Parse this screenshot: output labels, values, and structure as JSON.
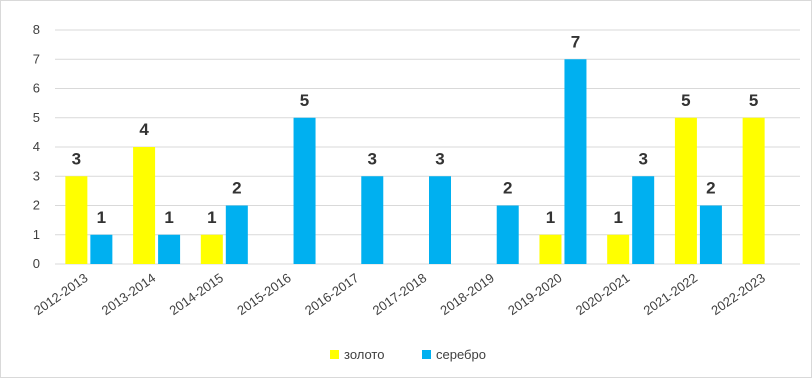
{
  "chart_data": {
    "type": "bar",
    "categories": [
      "2012-2013",
      "2013-2014",
      "2014-2015",
      "2015-2016",
      "2016-2017",
      "2017-2018",
      "2018-2019",
      "2019-2020",
      "2020-2021",
      "2021-2022",
      "2022-2023"
    ],
    "series": [
      {
        "name": "золото",
        "color": "#FFFF00",
        "values": [
          3,
          4,
          1,
          0,
          0,
          0,
          0,
          1,
          1,
          5,
          5
        ]
      },
      {
        "name": "серебро",
        "color": "#00B0F0",
        "values": [
          1,
          1,
          2,
          5,
          3,
          3,
          2,
          7,
          3,
          2,
          0
        ]
      }
    ],
    "title": "",
    "xlabel": "",
    "ylabel": "",
    "ylim": [
      0,
      8
    ],
    "yticks": [
      "0",
      "1",
      "2",
      "3",
      "4",
      "5",
      "6",
      "7",
      "8"
    ],
    "grid": true,
    "legend_position": "bottom"
  }
}
